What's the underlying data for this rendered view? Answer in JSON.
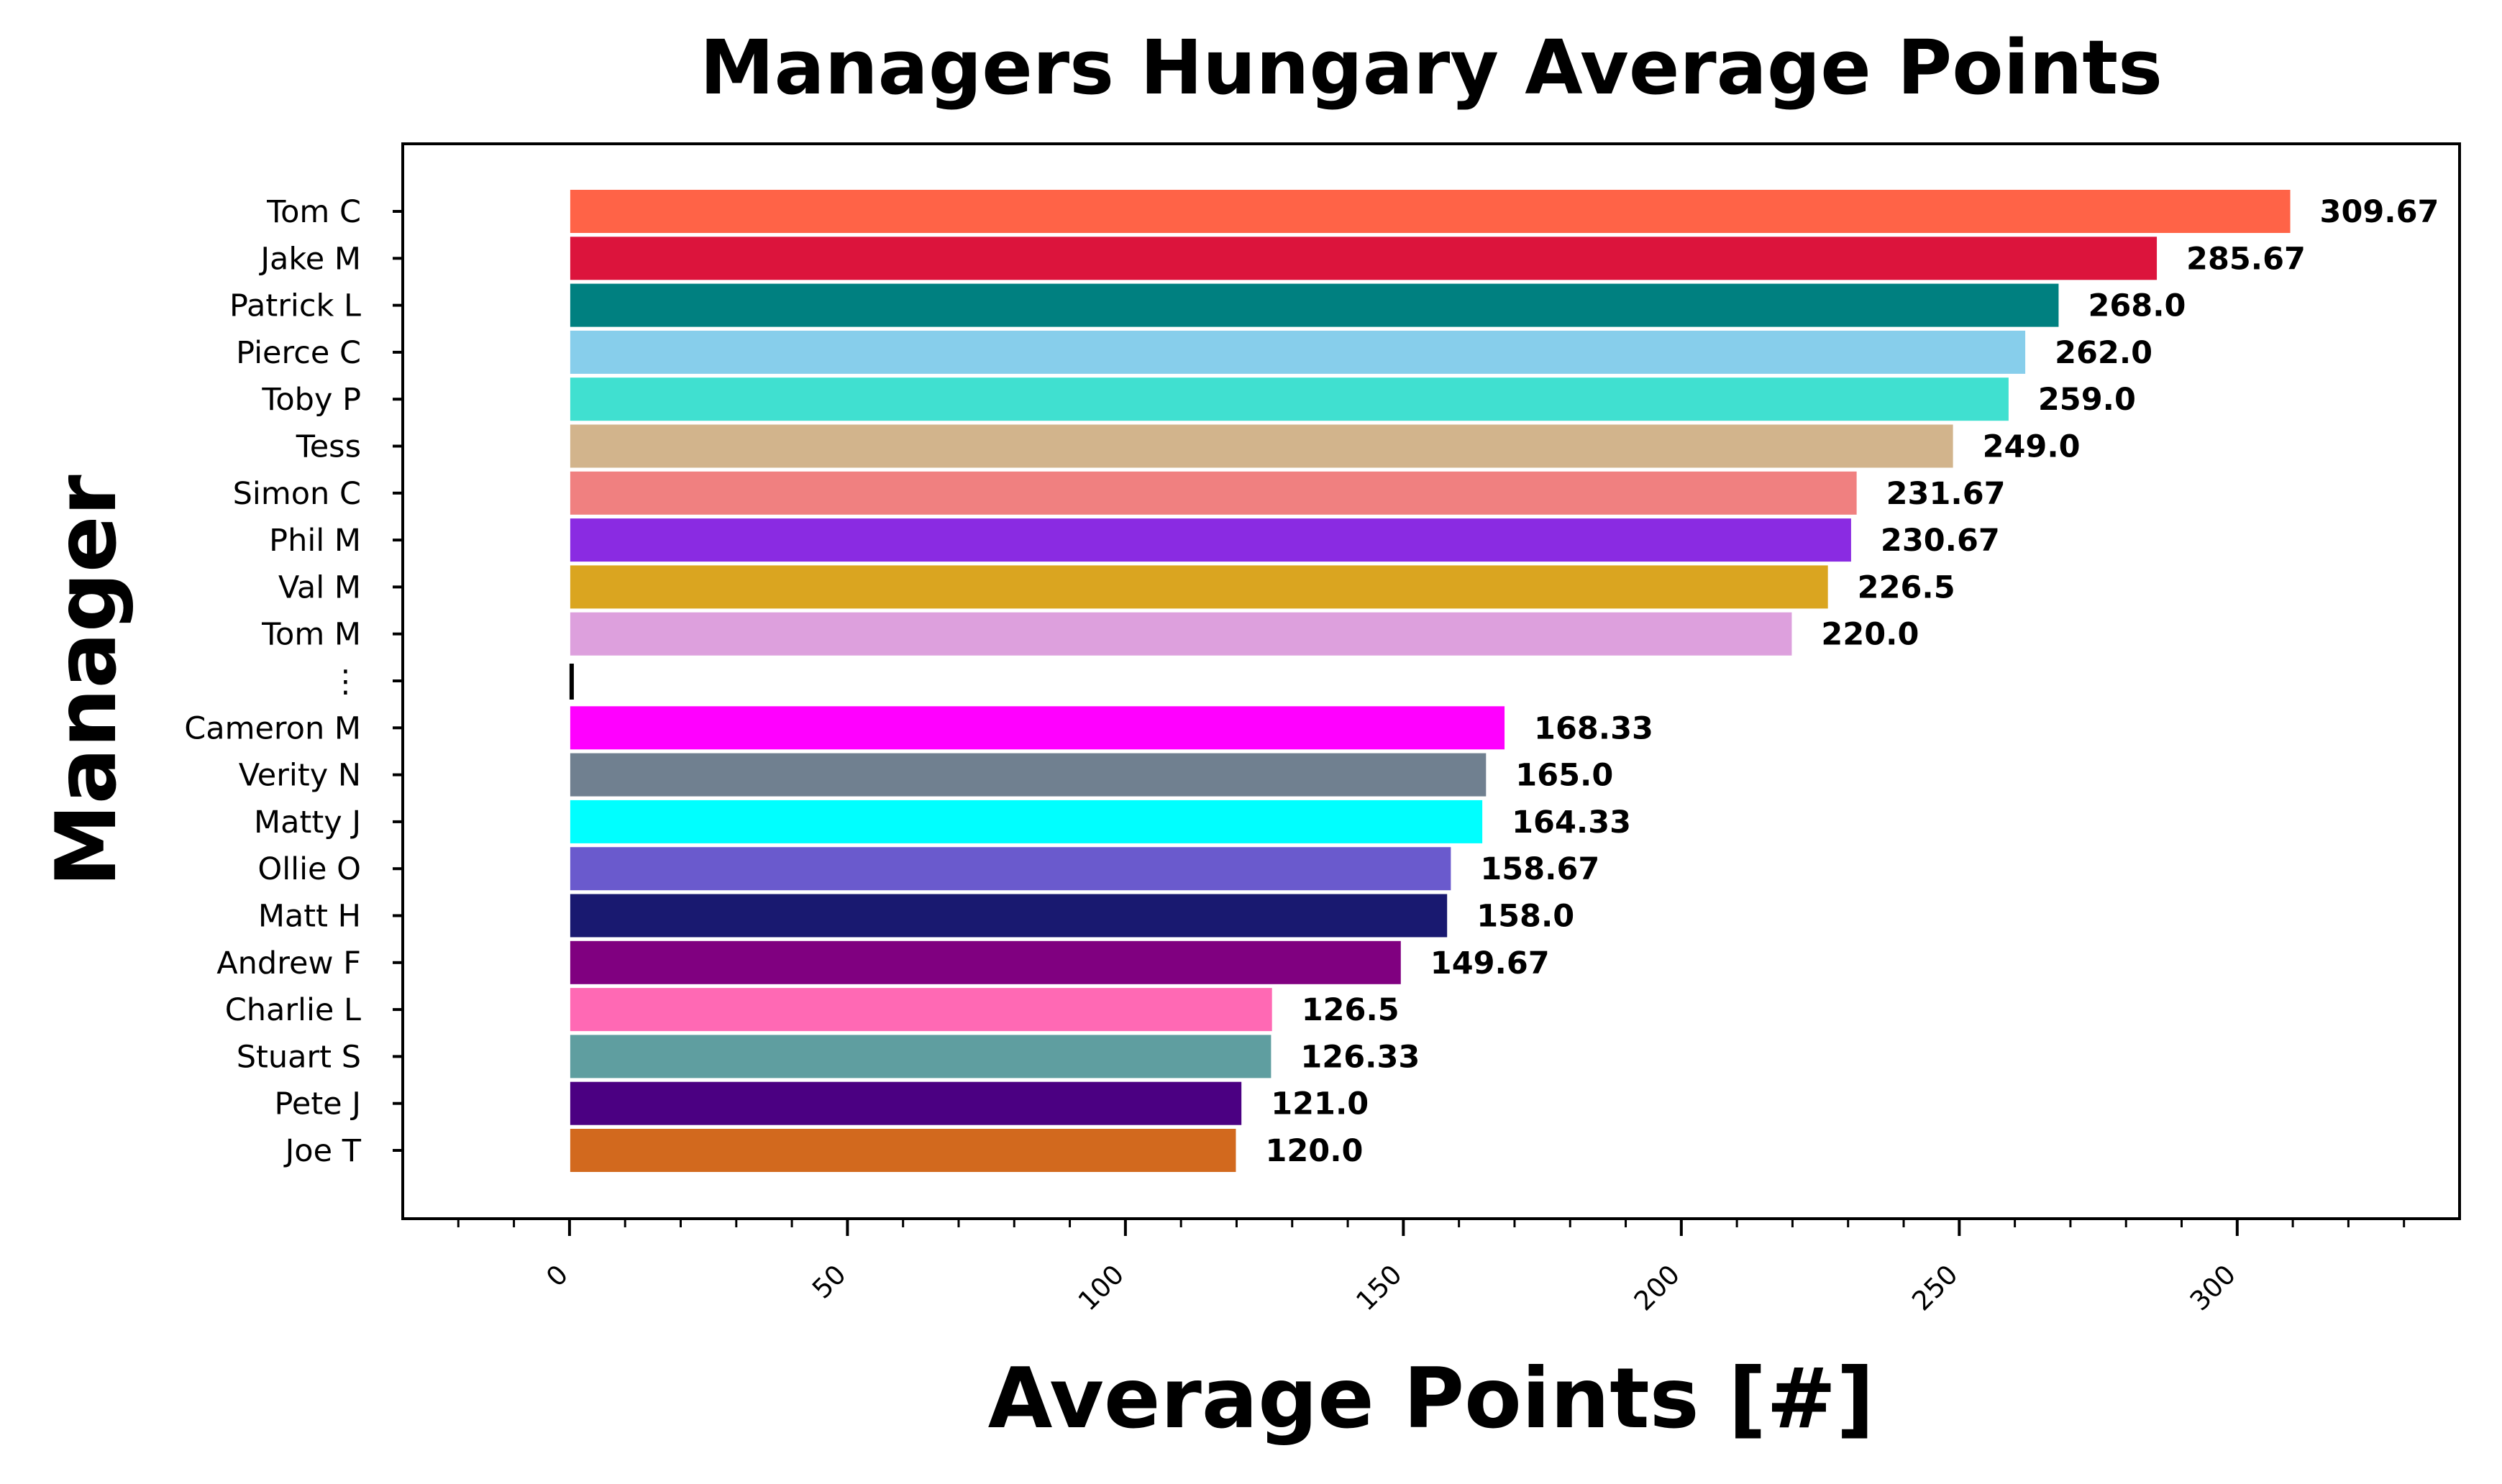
{
  "chart_data": {
    "type": "bar",
    "orientation": "horizontal",
    "title": "Managers Hungary Average Points",
    "xlabel": "Average Points [#]",
    "ylabel": "Manager",
    "xlim": [
      -30,
      340
    ],
    "xticks": [
      0,
      50,
      100,
      150,
      200,
      250,
      300
    ],
    "grid": false,
    "legend": "none",
    "categories": [
      "Tom C",
      "Jake M",
      "Patrick L",
      "Pierce C",
      "Toby P",
      "Tess",
      "Simon C",
      "Phil M",
      "Val M",
      "Tom M",
      "⋮",
      "Cameron M",
      "Verity N",
      "Matty J",
      "Ollie O",
      "Matt H",
      "Andrew F",
      "Charlie L",
      "Stuart S",
      "Pete J",
      "Joe T"
    ],
    "values": [
      309.67,
      285.67,
      268.0,
      262.0,
      259.0,
      249.0,
      231.67,
      230.67,
      226.5,
      220.0,
      null,
      168.33,
      165.0,
      164.33,
      158.67,
      158.0,
      149.67,
      126.5,
      126.33,
      121.0,
      120.0
    ],
    "value_labels": [
      "309.67",
      "285.67",
      "268.0",
      "262.0",
      "259.0",
      "249.0",
      "231.67",
      "230.67",
      "226.5",
      "220.0",
      "",
      "168.33",
      "165.0",
      "164.33",
      "158.67",
      "158.0",
      "149.67",
      "126.5",
      "126.33",
      "121.0",
      "120.0"
    ],
    "colors": [
      "#FF6347",
      "#DC143C",
      "#008080",
      "#87CEEB",
      "#40E0D0",
      "#D2B48C",
      "#F08080",
      "#8A2BE2",
      "#DAA520",
      "#DDA0DD",
      "#000000",
      "#FF00FF",
      "#708090",
      "#00FFFF",
      "#6A5ACD",
      "#191970",
      "#800080",
      "#FF69B4",
      "#5F9EA0",
      "#4B0082",
      "#D2691E"
    ]
  }
}
